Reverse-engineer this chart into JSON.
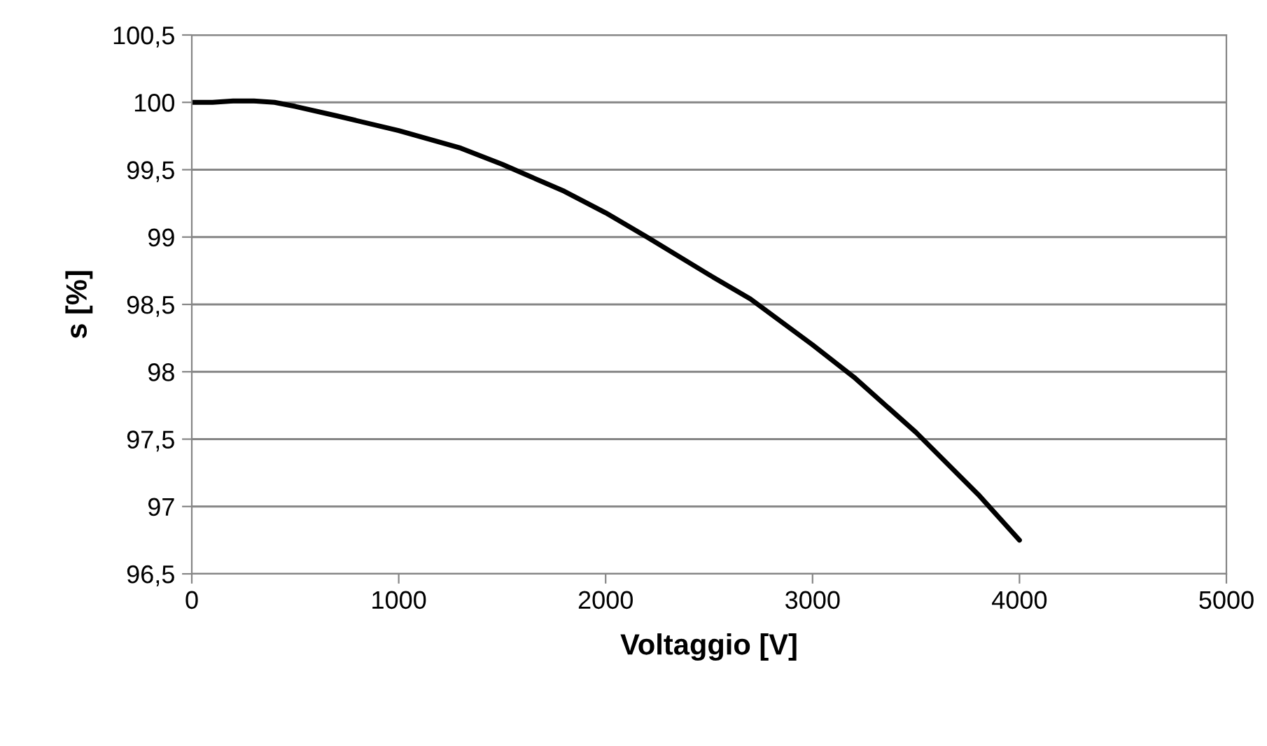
{
  "chart_data": {
    "type": "line",
    "xlabel": "Voltaggio [V]",
    "ylabel": "s [%]",
    "series": [
      {
        "color": "#000000",
        "x": [
          0,
          100,
          200,
          300,
          400,
          500,
          700,
          1000,
          1300,
          1500,
          1800,
          2000,
          2200,
          2500,
          2700,
          3000,
          3200,
          3500,
          3800,
          4000
        ],
        "values": [
          100,
          100.0,
          100.01,
          100.01,
          100.0,
          99.97,
          99.9,
          99.79,
          99.66,
          99.54,
          99.34,
          99.18,
          99.0,
          98.72,
          98.54,
          98.2,
          97.96,
          97.55,
          97.09,
          96.75
        ]
      }
    ],
    "xlim": [
      0,
      5000
    ],
    "xticks": [
      0,
      1000,
      2000,
      3000,
      4000,
      5000
    ],
    "ylim": [
      96.5,
      100.5
    ],
    "yticks": [
      {
        "value": 96.5,
        "label": "96,5"
      },
      97,
      {
        "value": 97.5,
        "label": "97,5"
      },
      98,
      {
        "value": 98.5,
        "label": "98,5"
      },
      99,
      {
        "value": 99.5,
        "label": "99,5"
      },
      100,
      {
        "value": 100.5,
        "label": "100,5"
      }
    ],
    "grid": "y",
    "legend": false,
    "marker": "none",
    "line_style": "solid"
  }
}
